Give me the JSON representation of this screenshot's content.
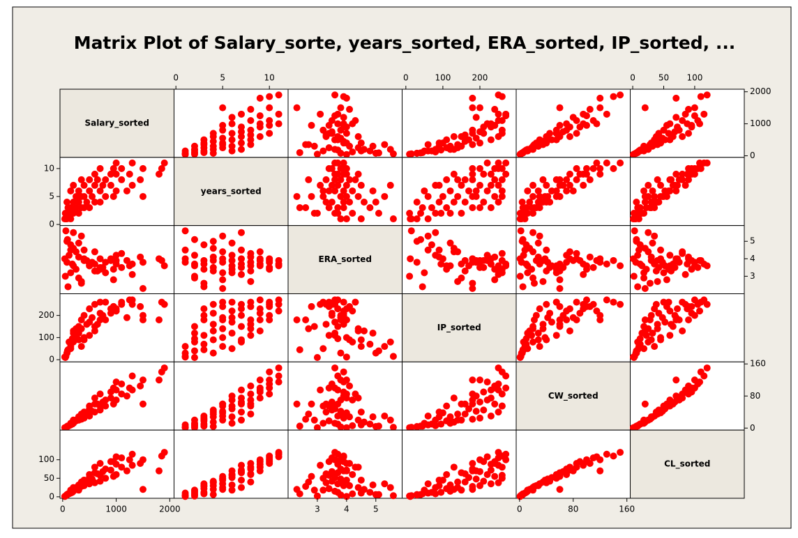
{
  "chart_data": {
    "type": "scatter_matrix",
    "title": "Matrix Plot of Salary_sorte, years_sorted, ERA_sorted, IP_sorted, ...",
    "color": "#ff0000",
    "variables": [
      {
        "name": "Salary_sorted",
        "lim": [
          -50,
          2080
        ],
        "ticks": [
          0,
          1000,
          2000
        ],
        "values": [
          80,
          150,
          60,
          200,
          120,
          300,
          90,
          250,
          400,
          150,
          350,
          500,
          300,
          600,
          200,
          450,
          700,
          400,
          800,
          250,
          550,
          950,
          350,
          500,
          1000,
          300,
          700,
          1200,
          600,
          900,
          400,
          1300,
          750,
          800,
          1100,
          500,
          1450,
          650,
          900,
          1250,
          600,
          1000,
          1100,
          1850,
          700,
          1500,
          950,
          1300,
          1900,
          1000,
          50,
          100,
          80,
          150,
          40,
          1500,
          1800,
          200,
          180,
          350
        ]
      },
      {
        "name": "years_sorted",
        "lim": [
          -0.2,
          12
        ],
        "ticks": [
          0,
          5,
          10
        ],
        "values": [
          1,
          1,
          1,
          2,
          2,
          2,
          2,
          3,
          3,
          3,
          3,
          3,
          4,
          4,
          4,
          4,
          4,
          5,
          5,
          5,
          5,
          5,
          5,
          6,
          6,
          6,
          6,
          6,
          7,
          7,
          7,
          7,
          7,
          8,
          8,
          8,
          8,
          8,
          9,
          9,
          9,
          9,
          10,
          10,
          10,
          10,
          10,
          11,
          11,
          11,
          2,
          3,
          4,
          6,
          1,
          5,
          9,
          7,
          2,
          8
        ]
      },
      {
        "name": "ERA_sorted",
        "lim": [
          2.0,
          5.9
        ],
        "ticks": [
          3,
          4,
          5
        ],
        "values": [
          3.8,
          4.5,
          5.6,
          3.6,
          4.2,
          2.9,
          5.1,
          3.4,
          3.9,
          4.8,
          2.6,
          3.7,
          4.1,
          3.3,
          4.6,
          3.9,
          3.5,
          4.0,
          3.2,
          4.4,
          3.8,
          2.8,
          5.3,
          3.6,
          4.2,
          4.9,
          3.4,
          3.9,
          3.7,
          4.0,
          4.5,
          3.1,
          3.5,
          3.8,
          4.3,
          3.6,
          4.1,
          3.3,
          3.9,
          3.6,
          4.4,
          3.7,
          3.5,
          3.9,
          4.0,
          3.8,
          3.4,
          3.7,
          3.6,
          3.9,
          3.0,
          2.4,
          5.0,
          3.2,
          4.0,
          2.3,
          4.0,
          5.5,
          3.7,
          2.7
        ]
      },
      {
        "name": "IP_sorted",
        "lim": [
          -10,
          298
        ],
        "ticks": [
          0,
          100,
          200
        ],
        "values": [
          30,
          60,
          15,
          120,
          80,
          150,
          40,
          110,
          200,
          70,
          180,
          230,
          90,
          250,
          130,
          160,
          210,
          100,
          260,
          140,
          190,
          240,
          60,
          170,
          220,
          120,
          260,
          190,
          150,
          230,
          90,
          250,
          200,
          180,
          260,
          110,
          240,
          160,
          210,
          270,
          130,
          230,
          250,
          260,
          180,
          200,
          240,
          270,
          250,
          220,
          10,
          45,
          30,
          50,
          12,
          180,
          180,
          80,
          95,
          140
        ]
      },
      {
        "name": "CW_sorted",
        "lim": [
          -5,
          165
        ],
        "ticks": [
          0,
          80,
          160
        ],
        "values": [
          3,
          8,
          2,
          12,
          6,
          20,
          5,
          18,
          25,
          10,
          22,
          30,
          28,
          40,
          15,
          35,
          45,
          38,
          55,
          20,
          42,
          60,
          30,
          48,
          70,
          28,
          55,
          80,
          60,
          75,
          40,
          95,
          65,
          70,
          85,
          55,
          105,
          60,
          90,
          100,
          75,
          95,
          110,
          140,
          85,
          120,
          100,
          130,
          150,
          115,
          1,
          5,
          4,
          12,
          1,
          60,
          120,
          20,
          10,
          35
        ]
      },
      {
        "name": "CL_sorted",
        "lim": [
          -4,
          180
        ],
        "ticks": [
          0,
          50,
          100
        ],
        "values": [
          5,
          10,
          3,
          15,
          8,
          18,
          6,
          22,
          30,
          12,
          28,
          35,
          30,
          38,
          20,
          40,
          42,
          45,
          50,
          25,
          48,
          55,
          35,
          52,
          60,
          32,
          58,
          70,
          65,
          72,
          45,
          85,
          68,
          75,
          80,
          60,
          90,
          62,
          95,
          100,
          80,
          88,
          105,
          110,
          90,
          100,
          95,
          115,
          120,
          108,
          2,
          8,
          6,
          18,
          1,
          20,
          70,
          25,
          12,
          40
        ]
      }
    ]
  }
}
